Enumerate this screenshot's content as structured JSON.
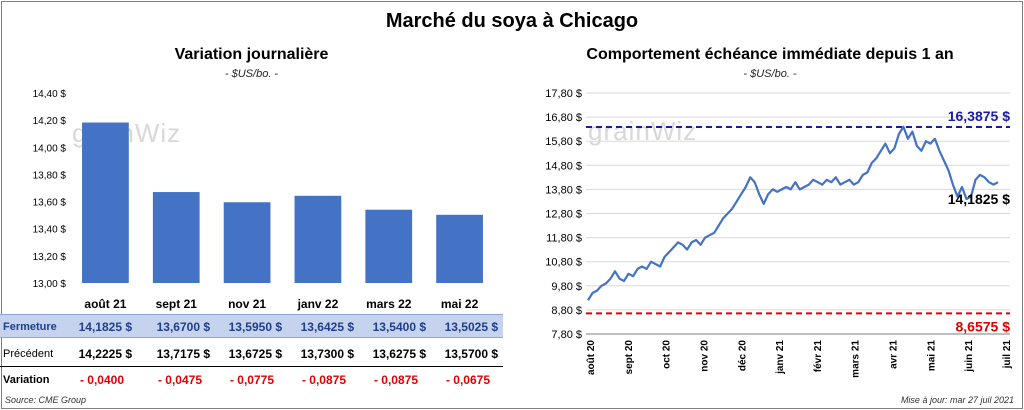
{
  "main_title": "Marché du soya à Chicago",
  "left": {
    "title": "Variation  journalière",
    "unit": "- $US/bo. -"
  },
  "right": {
    "title": "Comportement  échéance immédiate depuis 1 an",
    "unit": "- $US/bo. -"
  },
  "watermark": "grainWiz",
  "table": {
    "row_labels": {
      "close": "Fermeture",
      "prev": "Précédent",
      "var": "Variation"
    },
    "close": [
      "14,1825  $",
      "13,6700  $",
      "13,5950  $",
      "13,6425  $",
      "13,5400  $",
      "13,5025  $"
    ],
    "prev": [
      "14,2225  $",
      "13,7175  $",
      "13,6725  $",
      "13,7300  $",
      "13,6275  $",
      "13,5700  $"
    ],
    "var": [
      "- 0,0400",
      "- 0,0475",
      "- 0,0775",
      "- 0,0875",
      "- 0,0875",
      "- 0,0675"
    ]
  },
  "footer": {
    "source": "Source: CME Group",
    "updated": "Mise à jour: mar 27 juil 2021"
  },
  "colors": {
    "bar": "#4472c4",
    "line": "#4472c4",
    "high_line": "#1a1aa6",
    "low_line": "#e00000"
  },
  "chart_data": [
    {
      "type": "bar",
      "title": "Variation  journalière",
      "categories": [
        "août 21",
        "sept 21",
        "nov 21",
        "janv 22",
        "mars 22",
        "mai 22"
      ],
      "values": [
        14.1825,
        13.67,
        13.595,
        13.6425,
        13.54,
        13.5025
      ],
      "ylim": [
        13.0,
        14.4
      ],
      "yticks": [
        13.0,
        13.2,
        13.4,
        13.6,
        13.8,
        14.0,
        14.2,
        14.4
      ],
      "ytick_labels": [
        "13,00 $",
        "13,20 $",
        "13,40 $",
        "13,60 $",
        "13,80 $",
        "14,00 $",
        "14,20 $",
        "14,40 $"
      ],
      "grid": false
    },
    {
      "type": "line",
      "title": "Comportement  échéance immédiate depuis 1 an",
      "x_labels": [
        "août 20",
        "sept 20",
        "oct 20",
        "nov 20",
        "déc 20",
        "janv 21",
        "févr 21",
        "mars 21",
        "avr 21",
        "mai 21",
        "juin 21",
        "juil 21"
      ],
      "ylim": [
        7.8,
        17.8
      ],
      "yticks": [
        7.8,
        8.8,
        9.8,
        10.8,
        11.8,
        12.8,
        13.8,
        14.8,
        15.8,
        16.8,
        17.8
      ],
      "ytick_labels": [
        "7,80 $",
        "8,80 $",
        "9,80 $",
        "10,80 $",
        "11,80 $",
        "12,80 $",
        "13,80 $",
        "14,80 $",
        "15,80 $",
        "16,80 $",
        "17,80 $"
      ],
      "high": {
        "value": 16.3875,
        "label": "16,3875 $"
      },
      "low": {
        "value": 8.6575,
        "label": "8,6575 $"
      },
      "last": {
        "value": 14.1825,
        "label": "14,1825 $"
      },
      "series": [
        {
          "values": [
            9.2,
            9.5,
            9.6,
            9.8,
            9.9,
            10.1,
            10.4,
            10.1,
            10.0,
            10.3,
            10.2,
            10.5,
            10.6,
            10.5,
            10.8,
            10.7,
            10.6,
            11.0,
            11.2,
            11.4,
            11.6,
            11.5,
            11.3,
            11.6,
            11.7,
            11.5,
            11.8,
            11.9,
            12.0,
            12.3,
            12.6,
            12.8,
            13.0,
            13.3,
            13.6,
            13.9,
            14.3,
            14.1,
            13.6,
            13.2,
            13.6,
            13.8,
            13.7,
            13.8,
            13.9,
            13.8,
            14.1,
            13.8,
            13.9,
            14.0,
            14.2,
            14.1,
            14.0,
            14.2,
            14.1,
            14.3,
            14.0,
            14.1,
            14.2,
            14.0,
            14.1,
            14.4,
            14.5,
            14.9,
            15.1,
            15.4,
            15.7,
            15.3,
            15.5,
            16.1,
            16.4,
            15.9,
            16.2,
            15.6,
            15.4,
            15.8,
            15.7,
            15.9,
            15.4,
            15.0,
            14.6,
            14.0,
            13.5,
            13.9,
            13.4,
            13.5,
            14.2,
            14.4,
            14.3,
            14.1,
            14.0,
            14.1
          ]
        }
      ]
    }
  ]
}
